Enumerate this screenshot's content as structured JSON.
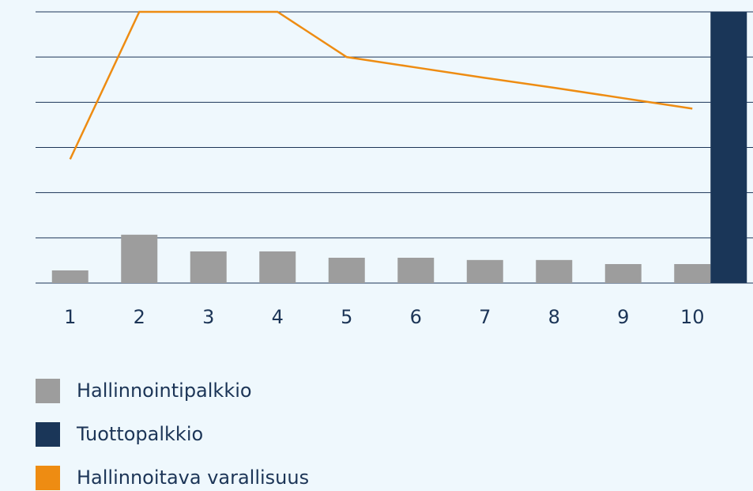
{
  "chart_data": {
    "type": "bar",
    "categories": [
      "1",
      "2",
      "3",
      "4",
      "5",
      "6",
      "7",
      "8",
      "9",
      "10"
    ],
    "series": [
      {
        "name": "Hallinnointipalkkio",
        "color": "#9d9d9d",
        "type": "bar",
        "values": [
          0.28,
          1.07,
          0.7,
          0.7,
          0.56,
          0.56,
          0.51,
          0.51,
          0.42,
          0.42
        ]
      },
      {
        "name": "Tuottopalkkio",
        "color": "#1a3658",
        "type": "bar",
        "values": [
          null,
          null,
          null,
          null,
          null,
          null,
          null,
          null,
          null,
          6
        ]
      },
      {
        "name": "Hallinnoitava varallisuus",
        "color": "#ee8c12",
        "type": "line",
        "values": [
          2.74,
          6,
          6,
          6,
          5,
          4.77,
          4.54,
          4.32,
          4.09,
          3.86
        ]
      }
    ],
    "ylim": [
      0,
      6
    ],
    "yticks": [
      0,
      1,
      2,
      3,
      4,
      5,
      6
    ],
    "grid": true,
    "legend": "bottom"
  }
}
